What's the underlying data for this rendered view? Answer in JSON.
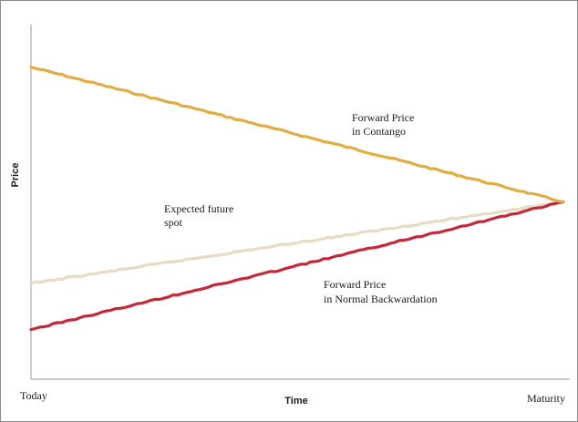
{
  "chart_data": {
    "type": "line",
    "xlabel": "Time",
    "ylabel": "Price",
    "x_tick_labels": [
      "Today",
      "Maturity"
    ],
    "x": [
      0,
      1
    ],
    "ylim": [
      0,
      1
    ],
    "grid": false,
    "legend": "none",
    "series": [
      {
        "name": "Forward Price in Contango",
        "label_lines": [
          "Forward Price",
          "in Contango"
        ],
        "color": "#e0ad45",
        "values": [
          0.88,
          0.5
        ]
      },
      {
        "name": "Expected future spot",
        "label_lines": [
          "Expected future",
          "spot"
        ],
        "color": "#e6dcc5",
        "values": [
          0.27,
          0.5
        ]
      },
      {
        "name": "Forward Price in Normal Backwardation",
        "label_lines": [
          "Forward Price",
          "in Normal Backwardation"
        ],
        "color": "#c22a3a",
        "values": [
          0.14,
          0.5
        ]
      }
    ]
  }
}
